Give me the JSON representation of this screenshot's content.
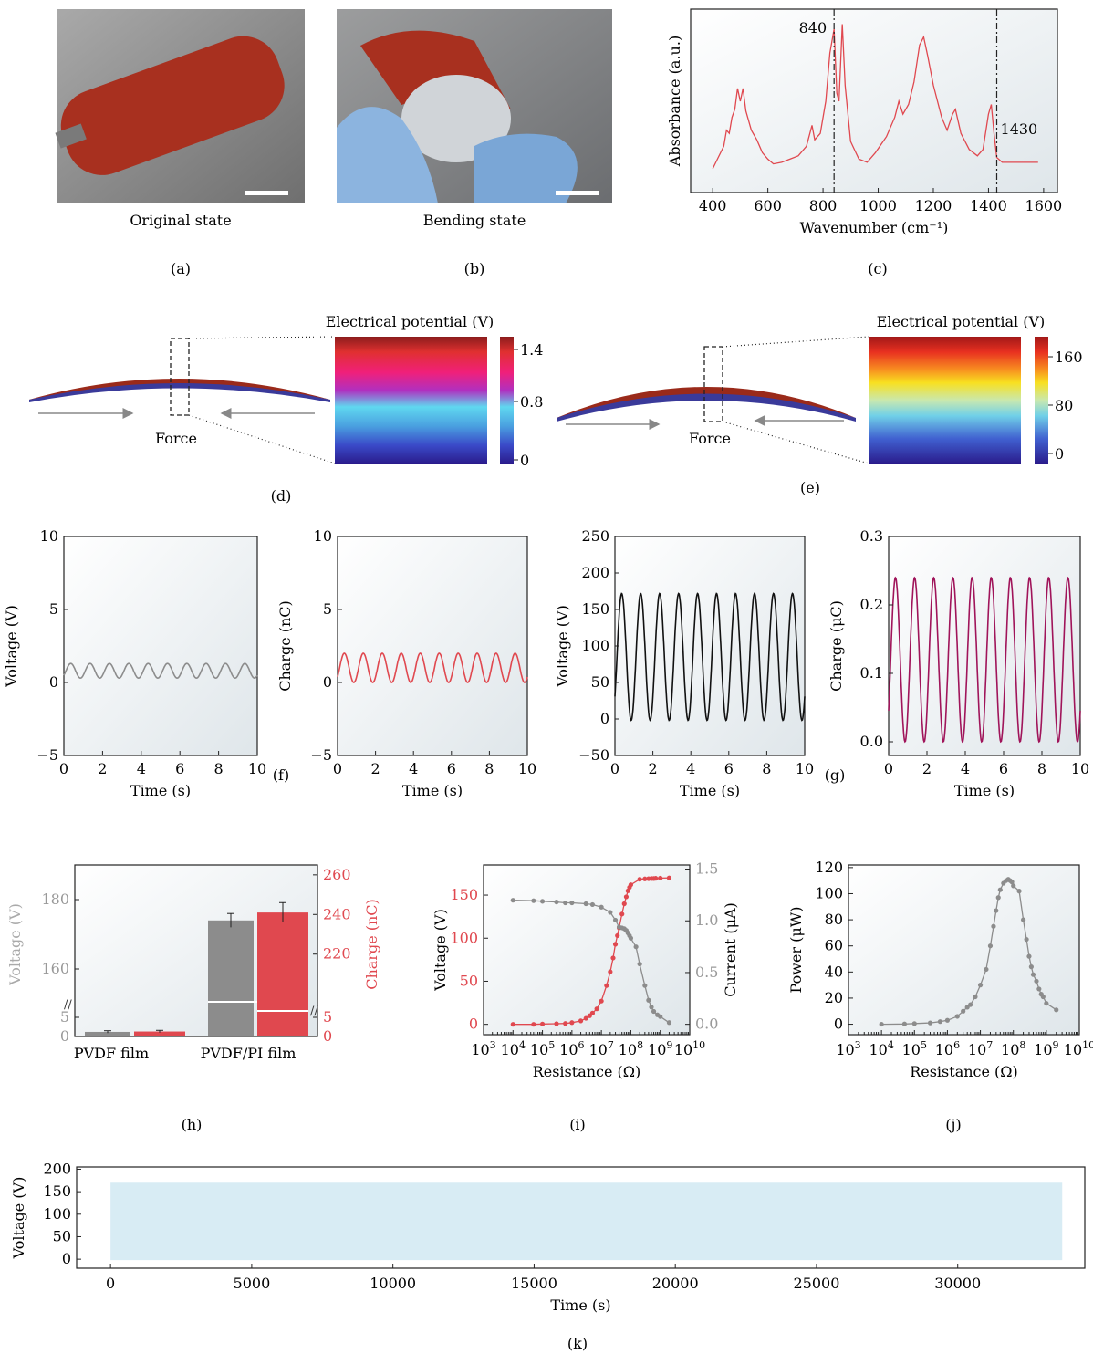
{
  "colors": {
    "red": "#e0484f",
    "gray": "#8c8c8c",
    "black": "#111111",
    "maroon": "#a0145a",
    "lightblue": "#d8ecf4",
    "film_red": "#a5301f",
    "film_blue": "#3a3a9a"
  },
  "photos": {
    "a_caption": "Original state",
    "b_caption": "Bending state"
  },
  "panels": {
    "a": "(a)",
    "b": "(b)",
    "c": "(c)",
    "d": "(d)",
    "e": "(e)",
    "f": "(f)",
    "g": "(g)",
    "h": "(h)",
    "i": "(i)",
    "j": "(j)",
    "k": "(k)"
  },
  "simulation": {
    "d": {
      "title": "Electrical potential (V)",
      "ticks": [
        "1.4",
        "0.8",
        "0"
      ],
      "force": "Force"
    },
    "e": {
      "title": "Electrical potential (V)",
      "ticks": [
        "160",
        "80",
        "0"
      ],
      "force": "Force"
    }
  },
  "chart_data": [
    {
      "id": "c",
      "type": "line",
      "xlabel": "Wavenumber (cm⁻¹)",
      "ylabel": "Absorbance (a.u.)",
      "xlim": [
        320,
        1650
      ],
      "x_ticks": [
        400,
        600,
        800,
        1000,
        1200,
        1400,
        1600
      ],
      "annotations": [
        "840",
        "1430"
      ],
      "vlines": [
        840,
        1430
      ],
      "series": [
        {
          "points": [
            [
              400,
              0.08
            ],
            [
              420,
              0.15
            ],
            [
              440,
              0.22
            ],
            [
              450,
              0.32
            ],
            [
              460,
              0.3
            ],
            [
              470,
              0.4
            ],
            [
              480,
              0.45
            ],
            [
              490,
              0.58
            ],
            [
              500,
              0.5
            ],
            [
              510,
              0.58
            ],
            [
              520,
              0.44
            ],
            [
              540,
              0.32
            ],
            [
              560,
              0.26
            ],
            [
              580,
              0.18
            ],
            [
              600,
              0.14
            ],
            [
              620,
              0.11
            ],
            [
              650,
              0.12
            ],
            [
              680,
              0.14
            ],
            [
              710,
              0.16
            ],
            [
              740,
              0.22
            ],
            [
              760,
              0.35
            ],
            [
              770,
              0.26
            ],
            [
              790,
              0.3
            ],
            [
              810,
              0.5
            ],
            [
              825,
              0.8
            ],
            [
              840,
              0.95
            ],
            [
              850,
              0.55
            ],
            [
              858,
              0.5
            ],
            [
              870,
              0.98
            ],
            [
              880,
              0.6
            ],
            [
              900,
              0.25
            ],
            [
              930,
              0.14
            ],
            [
              960,
              0.12
            ],
            [
              990,
              0.18
            ],
            [
              1030,
              0.28
            ],
            [
              1060,
              0.4
            ],
            [
              1075,
              0.5
            ],
            [
              1090,
              0.42
            ],
            [
              1110,
              0.48
            ],
            [
              1130,
              0.62
            ],
            [
              1150,
              0.85
            ],
            [
              1165,
              0.9
            ],
            [
              1180,
              0.78
            ],
            [
              1200,
              0.6
            ],
            [
              1230,
              0.4
            ],
            [
              1250,
              0.32
            ],
            [
              1270,
              0.42
            ],
            [
              1280,
              0.45
            ],
            [
              1300,
              0.3
            ],
            [
              1330,
              0.2
            ],
            [
              1360,
              0.16
            ],
            [
              1380,
              0.2
            ],
            [
              1400,
              0.42
            ],
            [
              1410,
              0.48
            ],
            [
              1420,
              0.3
            ],
            [
              1430,
              0.15
            ],
            [
              1450,
              0.12
            ],
            [
              1500,
              0.12
            ],
            [
              1550,
              0.12
            ],
            [
              1580,
              0.12
            ]
          ]
        }
      ]
    },
    {
      "id": "f1",
      "type": "line",
      "xlabel": "Time (s)",
      "ylabel": "Voltage (V)",
      "xlim": [
        0,
        10
      ],
      "ylim": [
        -5,
        10
      ],
      "x_ticks": [
        0,
        2,
        4,
        6,
        8,
        10
      ],
      "y_ticks": [
        -5,
        0,
        5,
        10
      ],
      "y_tick_labels": [
        "−5",
        "0",
        "5",
        "10"
      ],
      "wave": {
        "min": 0.3,
        "max": 1.3,
        "cycles": 10
      }
    },
    {
      "id": "f2",
      "type": "line",
      "xlabel": "Time (s)",
      "ylabel": "Charge (nC)",
      "xlim": [
        0,
        10
      ],
      "ylim": [
        -5,
        10
      ],
      "x_ticks": [
        0,
        2,
        4,
        6,
        8,
        10
      ],
      "y_ticks": [
        -5,
        0,
        5,
        10
      ],
      "y_tick_labels": [
        "−5",
        "0",
        "5",
        "10"
      ],
      "wave": {
        "min": 0.0,
        "max": 2.0,
        "cycles": 10
      }
    },
    {
      "id": "g1",
      "type": "line",
      "xlabel": "Time (s)",
      "ylabel": "Voltage (V)",
      "xlim": [
        0,
        10
      ],
      "ylim": [
        -50,
        250
      ],
      "x_ticks": [
        0,
        2,
        4,
        6,
        8,
        10
      ],
      "y_ticks": [
        -50,
        0,
        50,
        100,
        150,
        200,
        250
      ],
      "y_tick_labels": [
        "−50",
        "0",
        "50",
        "100",
        "150",
        "200",
        "250"
      ],
      "wave": {
        "min": -2,
        "max": 172,
        "cycles": 10
      }
    },
    {
      "id": "g2",
      "type": "line",
      "xlabel": "Time (s)",
      "ylabel": "Charge (μC)",
      "xlim": [
        0,
        10
      ],
      "ylim": [
        -0.02,
        0.3
      ],
      "x_ticks": [
        0,
        2,
        4,
        6,
        8,
        10
      ],
      "y_ticks": [
        0,
        0.1,
        0.2,
        0.3
      ],
      "y_tick_labels": [
        "0.0",
        "0.1",
        "0.2",
        "0.3"
      ],
      "wave": {
        "min": 0.0,
        "max": 0.24,
        "cycles": 10
      }
    },
    {
      "id": "h",
      "type": "bar",
      "categories": [
        "PVDF film",
        "PVDF/PI film"
      ],
      "ylabel_left": "Voltage (V)",
      "ylabel_right": "Charge (nC)",
      "left_ticks": [
        "0",
        "5",
        "160",
        "180"
      ],
      "right_ticks": [
        "0",
        "5",
        "220",
        "240",
        "260"
      ],
      "series": [
        {
          "values": [
            1.2,
            174
          ],
          "errors": [
            0.3,
            2
          ]
        },
        {
          "values": [
            1.3,
            241
          ],
          "errors": [
            0.3,
            5
          ]
        }
      ]
    },
    {
      "id": "i",
      "type": "line",
      "xlabel": "Resistance (Ω)",
      "ylabel": "Voltage (V)",
      "ylabel_right": "Current (μA)",
      "xlog": [
        3,
        10
      ],
      "ylim": [
        -12,
        185
      ],
      "ylim_right": [
        -0.1,
        1.54
      ],
      "y_ticks": [
        0,
        50,
        100,
        150
      ],
      "y_ticks_right": [
        "0.0",
        "0.5",
        "1.0",
        "1.5"
      ],
      "series": [
        {
          "points": [
            [
              10000.0,
              0
            ],
            [
              50000.0,
              0
            ],
            [
              100000.0,
              0.4
            ],
            [
              300000.0,
              0.7
            ],
            [
              600000.0,
              1
            ],
            [
              1000000.0,
              2
            ],
            [
              2000000.0,
              4
            ],
            [
              3000000.0,
              7
            ],
            [
              4000000.0,
              10
            ],
            [
              5000000.0,
              13
            ],
            [
              7000000.0,
              18
            ],
            [
              10000000.0,
              27
            ],
            [
              15000000.0,
              45
            ],
            [
              20000000.0,
              61
            ],
            [
              25000000.0,
              77
            ],
            [
              30000000.0,
              93
            ],
            [
              35000000.0,
              103
            ],
            [
              40000000.0,
              112
            ],
            [
              50000000.0,
              128
            ],
            [
              60000000.0,
              140
            ],
            [
              70000000.0,
              148
            ],
            [
              80000000.0,
              155
            ],
            [
              90000000.0,
              159
            ],
            [
              100000000.0,
              162
            ],
            [
              200000000.0,
              191
            ],
            [
              300000000.0,
              193
            ],
            [
              400000000.0,
              194
            ],
            [
              500000000.0,
              195
            ],
            [
              600000000.0,
              195
            ],
            [
              700000000.0,
              196
            ],
            [
              1000000000.0,
              197
            ],
            [
              2000000000.0,
              198
            ]
          ]
        },
        {
          "points": [
            [
              10000.0,
              144
            ],
            [
              50000.0,
              143.5
            ],
            [
              100000.0,
              142.8
            ],
            [
              300000.0,
              142
            ],
            [
              600000.0,
              141
            ],
            [
              1000000.0,
              141
            ],
            [
              3000000.0,
              140
            ],
            [
              5000000.0,
              139
            ],
            [
              10000000.0,
              136
            ],
            [
              20000000.0,
              130
            ],
            [
              30000000.0,
              121
            ],
            [
              40000000.0,
              113
            ],
            [
              50000000.0,
              112
            ],
            [
              60000000.0,
              111
            ],
            [
              70000000.0,
              109
            ],
            [
              80000000.0,
              106
            ],
            [
              90000000.0,
              103
            ],
            [
              100000000.0,
              100
            ],
            [
              150000000.0,
              90
            ],
            [
              200000000.0,
              70
            ],
            [
              300000000.0,
              45
            ],
            [
              400000000.0,
              28
            ],
            [
              500000000.0,
              20
            ],
            [
              600000000.0,
              15
            ],
            [
              800000000.0,
              11
            ],
            [
              1000000000.0,
              9
            ],
            [
              2000000000.0,
              2
            ]
          ]
        }
      ]
    },
    {
      "id": "j",
      "type": "line",
      "xlabel": "Resistance (Ω)",
      "ylabel": "Power (μW)",
      "xlog": [
        3,
        10
      ],
      "ylim": [
        -8,
        122
      ],
      "y_ticks": [
        0,
        20,
        40,
        60,
        80,
        100,
        120
      ],
      "series": [
        {
          "points": [
            [
              10000.0,
              0
            ],
            [
              50000.0,
              0.2
            ],
            [
              100000.0,
              0.5
            ],
            [
              300000.0,
              1
            ],
            [
              600000.0,
              2
            ],
            [
              1000000.0,
              3
            ],
            [
              2000000.0,
              6
            ],
            [
              3000000.0,
              10
            ],
            [
              4000000.0,
              13
            ],
            [
              5000000.0,
              15
            ],
            [
              7000000.0,
              21
            ],
            [
              10000000.0,
              30
            ],
            [
              15000000.0,
              42
            ],
            [
              20000000.0,
              60
            ],
            [
              25000000.0,
              75
            ],
            [
              30000000.0,
              87
            ],
            [
              35000000.0,
              97
            ],
            [
              40000000.0,
              103
            ],
            [
              50000000.0,
              108
            ],
            [
              60000000.0,
              110
            ],
            [
              70000000.0,
              111
            ],
            [
              80000000.0,
              110
            ],
            [
              90000000.0,
              109
            ],
            [
              100000000.0,
              106
            ],
            [
              150000000.0,
              102
            ],
            [
              200000000.0,
              80
            ],
            [
              250000000.0,
              65
            ],
            [
              300000000.0,
              52
            ],
            [
              350000000.0,
              44
            ],
            [
              400000000.0,
              38
            ],
            [
              500000000.0,
              33
            ],
            [
              600000000.0,
              27
            ],
            [
              700000000.0,
              23
            ],
            [
              800000000.0,
              21
            ],
            [
              1000000000.0,
              16
            ],
            [
              2000000000.0,
              11
            ]
          ]
        }
      ]
    },
    {
      "id": "k",
      "type": "area",
      "xlabel": "Time (s)",
      "ylabel": "Voltage (V)",
      "xlim": [
        -1200,
        34500
      ],
      "ylim": [
        -20,
        205
      ],
      "x_ticks": [
        0,
        5000,
        10000,
        15000,
        20000,
        25000,
        30000
      ],
      "y_ticks": [
        0,
        50,
        100,
        150,
        200
      ],
      "band": {
        "start": 0,
        "end": 33700,
        "low": -2,
        "high": 170
      }
    }
  ]
}
